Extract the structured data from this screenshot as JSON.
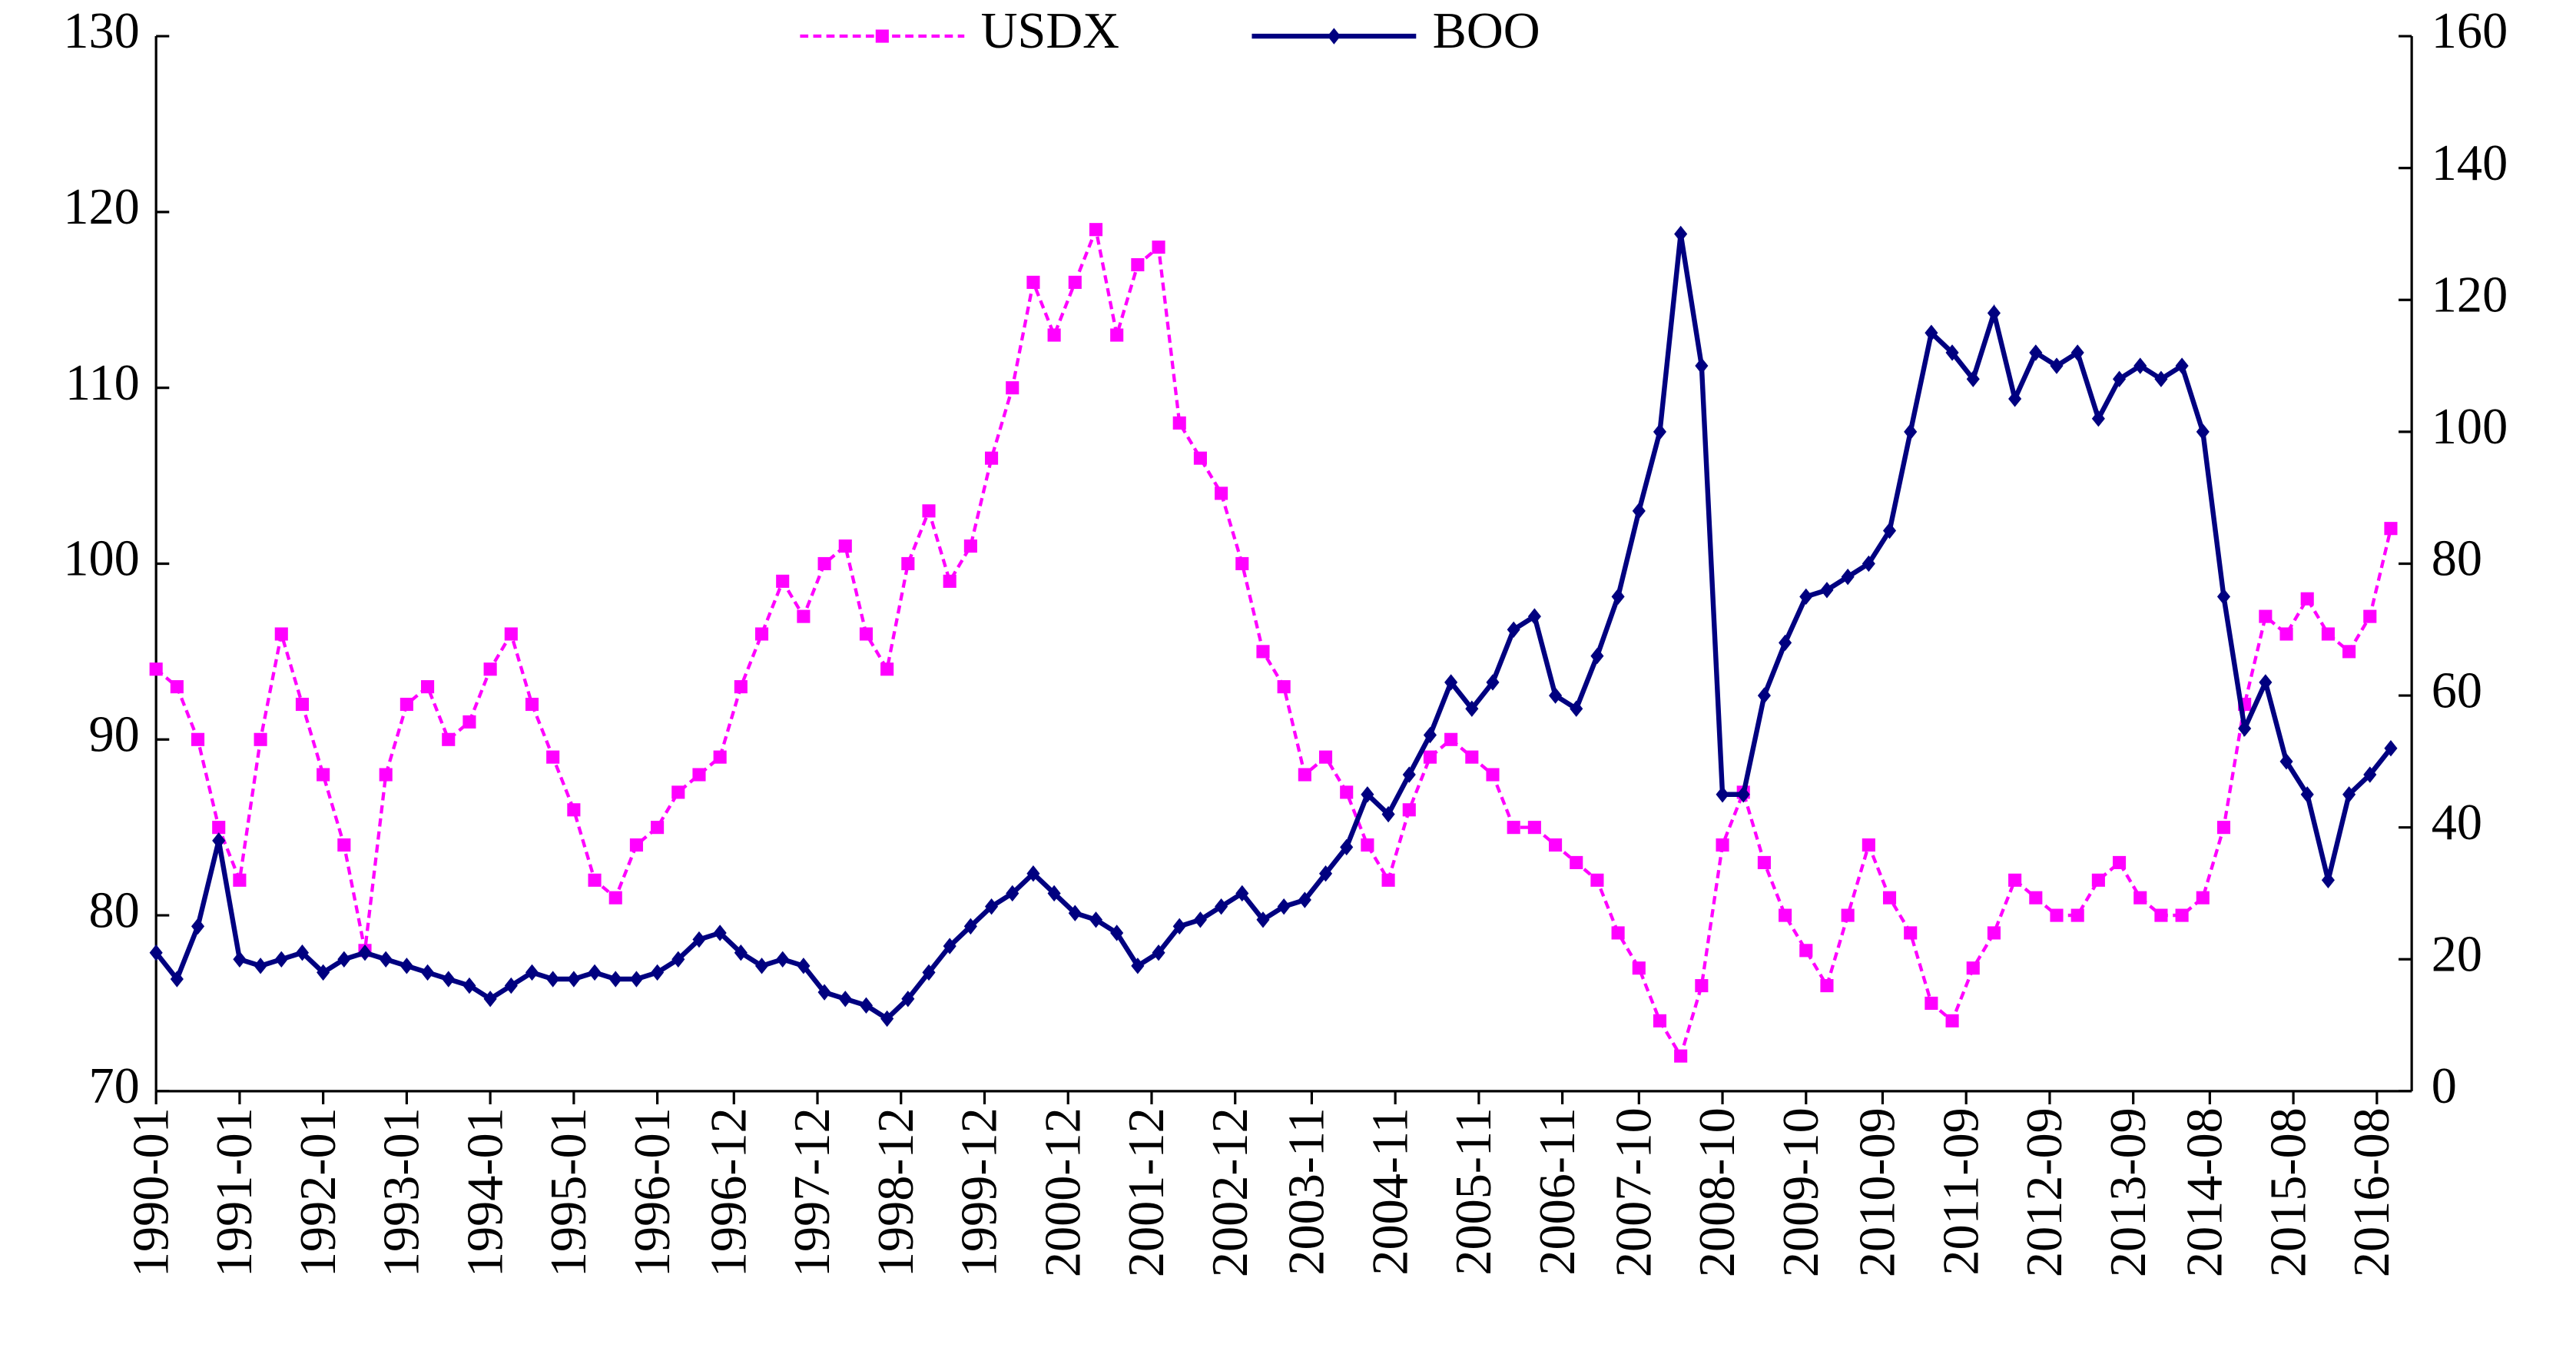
{
  "chart_data": {
    "type": "line",
    "x": [
      "1990-01",
      "1990-04",
      "1990-07",
      "1990-10",
      "1991-01",
      "1991-04",
      "1991-07",
      "1991-10",
      "1992-01",
      "1992-04",
      "1992-07",
      "1992-10",
      "1993-01",
      "1993-04",
      "1993-07",
      "1993-10",
      "1994-01",
      "1994-04",
      "1994-07",
      "1994-10",
      "1995-01",
      "1995-04",
      "1995-07",
      "1995-10",
      "1996-01",
      "1996-04",
      "1996-07",
      "1996-10",
      "1997-01",
      "1997-04",
      "1997-07",
      "1997-10",
      "1998-01",
      "1998-04",
      "1998-07",
      "1998-10",
      "1999-01",
      "1999-04",
      "1999-07",
      "1999-10",
      "2000-01",
      "2000-04",
      "2000-07",
      "2000-10",
      "2001-01",
      "2001-04",
      "2001-07",
      "2001-10",
      "2002-01",
      "2002-04",
      "2002-07",
      "2002-10",
      "2003-01",
      "2003-04",
      "2003-07",
      "2003-10",
      "2004-01",
      "2004-04",
      "2004-07",
      "2004-10",
      "2005-01",
      "2005-04",
      "2005-07",
      "2005-10",
      "2006-01",
      "2006-04",
      "2006-07",
      "2006-10",
      "2007-01",
      "2007-04",
      "2007-07",
      "2007-10",
      "2008-01",
      "2008-04",
      "2008-07",
      "2008-10",
      "2009-01",
      "2009-04",
      "2009-07",
      "2009-10",
      "2010-01",
      "2010-04",
      "2010-07",
      "2010-10",
      "2011-01",
      "2011-04",
      "2011-07",
      "2011-10",
      "2012-01",
      "2012-04",
      "2012-07",
      "2012-10",
      "2013-01",
      "2013-04",
      "2013-07",
      "2013-10",
      "2014-01",
      "2014-04",
      "2014-07",
      "2014-10",
      "2015-01",
      "2015-04",
      "2015-07",
      "2015-10",
      "2016-01",
      "2016-04",
      "2016-07",
      "2016-10"
    ],
    "series": [
      {
        "name": "USDX",
        "color": "#ff00ff",
        "axis": "y",
        "values": [
          94,
          93,
          90,
          85,
          82,
          90,
          96,
          92,
          88,
          84,
          78,
          88,
          92,
          93,
          90,
          91,
          94,
          96,
          92,
          89,
          86,
          82,
          81,
          84,
          85,
          87,
          88,
          89,
          93,
          96,
          99,
          97,
          100,
          101,
          96,
          94,
          100,
          103,
          99,
          101,
          106,
          110,
          116,
          113,
          116,
          119,
          113,
          117,
          118,
          108,
          106,
          104,
          100,
          95,
          93,
          88,
          89,
          87,
          84,
          82,
          86,
          89,
          90,
          89,
          88,
          85,
          85,
          84,
          83,
          82,
          79,
          77,
          74,
          72,
          76,
          84,
          87,
          83,
          80,
          78,
          76,
          80,
          84,
          81,
          79,
          75,
          74,
          77,
          79,
          82,
          81,
          80,
          80,
          82,
          83,
          81,
          80,
          80,
          81,
          85,
          92,
          97,
          96,
          98,
          96,
          95,
          97,
          102
        ]
      },
      {
        "name": "BOO",
        "color": "#000080",
        "axis": "y2",
        "values": [
          21,
          17,
          25,
          38,
          20,
          19,
          20,
          21,
          18,
          20,
          21,
          20,
          19,
          18,
          17,
          16,
          14,
          16,
          18,
          17,
          17,
          18,
          17,
          17,
          18,
          20,
          23,
          24,
          21,
          19,
          20,
          19,
          15,
          14,
          13,
          11,
          14,
          18,
          22,
          25,
          28,
          30,
          33,
          30,
          27,
          26,
          24,
          19,
          21,
          25,
          26,
          28,
          30,
          26,
          28,
          29,
          33,
          37,
          45,
          42,
          48,
          54,
          62,
          58,
          62,
          70,
          72,
          60,
          58,
          66,
          75,
          88,
          100,
          130,
          110,
          45,
          45,
          60,
          68,
          75,
          76,
          78,
          80,
          85,
          100,
          115,
          112,
          108,
          118,
          105,
          112,
          110,
          112,
          102,
          108,
          110,
          108,
          110,
          100,
          75,
          55,
          62,
          50,
          45,
          32,
          45,
          48,
          52
        ]
      }
    ],
    "xlim": [
      "1990-01",
      "2016-12"
    ],
    "xticks": [
      "1990-01",
      "1991-01",
      "1992-01",
      "1993-01",
      "1994-01",
      "1995-01",
      "1996-01",
      "1996-12",
      "1997-12",
      "1998-12",
      "1999-12",
      "2000-12",
      "2001-12",
      "2002-12",
      "2003-11",
      "2004-11",
      "2005-11",
      "2006-11",
      "2007-10",
      "2008-10",
      "2009-10",
      "2010-09",
      "2011-09",
      "2012-09",
      "2013-09",
      "2014-08",
      "2015-08",
      "2016-08"
    ],
    "ylim": [
      70,
      130
    ],
    "yticks": [
      70,
      80,
      90,
      100,
      110,
      120,
      130
    ],
    "y2lim": [
      0,
      160
    ],
    "y2ticks": [
      0,
      20,
      40,
      60,
      80,
      100,
      120,
      140,
      160
    ],
    "legend": "top"
  }
}
